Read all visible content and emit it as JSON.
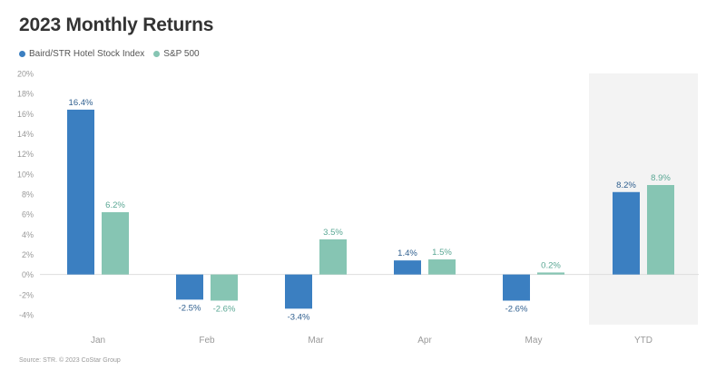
{
  "chart_data": {
    "type": "bar",
    "title": "2023 Monthly Returns",
    "categories": [
      "Jan",
      "Feb",
      "Mar",
      "Apr",
      "May",
      "YTD"
    ],
    "highlighted_category": "YTD",
    "series": [
      {
        "name": "Baird/STR Hotel Stock Index",
        "color": "#3b7fc1",
        "values": [
          16.4,
          -2.5,
          -3.4,
          1.4,
          -2.6,
          8.2
        ],
        "labels": [
          "16.4%",
          "-2.5%",
          "-3.4%",
          "1.4%",
          "-2.6%",
          "8.2%"
        ]
      },
      {
        "name": "S&P 500",
        "color": "#86c5b3",
        "values": [
          6.2,
          -2.6,
          3.5,
          1.5,
          0.2,
          8.9
        ],
        "labels": [
          "6.2%",
          "-2.6%",
          "3.5%",
          "1.5%",
          "0.2%",
          "8.9%"
        ]
      }
    ],
    "ylim": [
      -4,
      20
    ],
    "yticks": [
      -4,
      -2,
      0,
      2,
      4,
      6,
      8,
      10,
      12,
      14,
      16,
      18,
      20
    ],
    "ytick_labels": [
      "-4%",
      "-2%",
      "0%",
      "2%",
      "4%",
      "6%",
      "8%",
      "10%",
      "12%",
      "14%",
      "16%",
      "18%",
      "20%"
    ],
    "grid": false,
    "legend_position": "top-left",
    "source": "Source: STR. © 2023 CoStar Group"
  }
}
